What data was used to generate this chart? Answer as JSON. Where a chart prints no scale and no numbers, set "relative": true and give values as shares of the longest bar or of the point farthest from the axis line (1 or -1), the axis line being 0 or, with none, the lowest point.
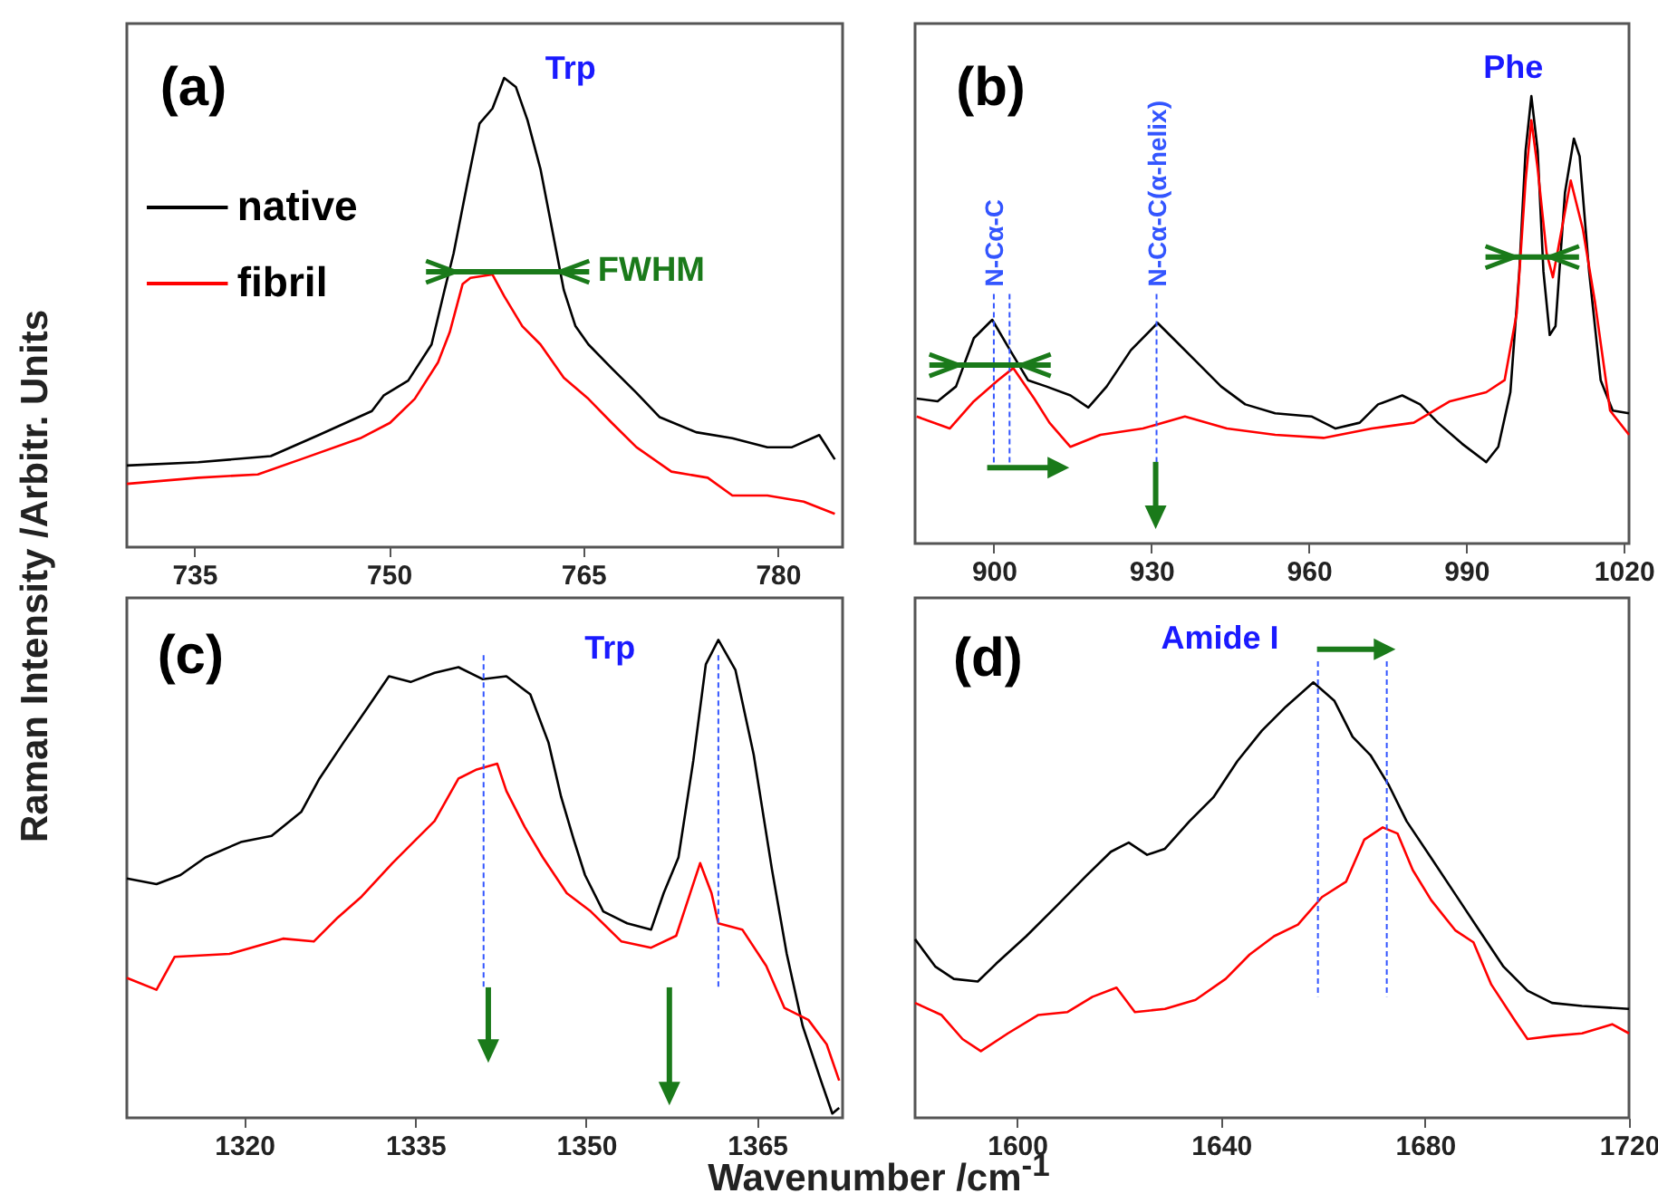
{
  "chart_data": [
    {
      "type": "line",
      "relative": true,
      "ylabel": "Raman Intensity /Arbitr. Units",
      "legend": "top left",
      "tick_labels": "x",
      "grid": false,
      "annotations": [
        "(a)",
        "Trp",
        "FWHM"
      ],
      "xlim": [
        729.8,
        785
      ],
      "xticks": [
        735,
        750,
        765,
        780
      ],
      "series": [
        {
          "name": "native",
          "color": "#000000",
          "x": [
            729.8,
            735.3,
            740.9,
            744.6,
            748.7,
            749.6,
            751.5,
            753.3,
            754.3,
            755.0,
            756.1,
            757.0,
            758.0,
            758.9,
            759.8,
            760.7,
            761.7,
            762.6,
            763.5,
            764.4,
            765.4,
            767.2,
            769.1,
            770.9,
            773.7,
            776.5,
            779.2,
            781.1,
            783.2,
            784.4
          ],
          "values": [
            0.174,
            0.181,
            0.194,
            0.239,
            0.29,
            0.323,
            0.355,
            0.432,
            0.548,
            0.626,
            0.781,
            0.903,
            0.935,
            1.0,
            0.981,
            0.91,
            0.806,
            0.677,
            0.548,
            0.471,
            0.432,
            0.381,
            0.329,
            0.277,
            0.245,
            0.232,
            0.213,
            0.213,
            0.239,
            0.187
          ]
        },
        {
          "name": "fibril",
          "color": "#ff0000",
          "x": [
            729.8,
            735.3,
            739.9,
            743.2,
            747.8,
            750.1,
            752.0,
            753.8,
            754.7,
            755.7,
            756.3,
            758.0,
            758.9,
            760.3,
            761.7,
            763.5,
            765.4,
            767.2,
            769.1,
            771.8,
            774.6,
            776.5,
            779.2,
            782.0,
            784.4
          ],
          "values": [
            0.135,
            0.148,
            0.155,
            0.187,
            0.232,
            0.265,
            0.316,
            0.394,
            0.458,
            0.561,
            0.574,
            0.581,
            0.535,
            0.471,
            0.432,
            0.361,
            0.316,
            0.265,
            0.213,
            0.161,
            0.148,
            0.11,
            0.11,
            0.097,
            0.071
          ]
        }
      ]
    },
    {
      "type": "line",
      "relative": true,
      "tick_labels": "x",
      "grid": false,
      "annotations": [
        "(b)",
        "Phe"
      ],
      "ref_lines": [
        {
          "axis": "x",
          "value": 900,
          "label": "N-Cα-C",
          "color": "#3355ff",
          "line_style": "dashed"
        },
        {
          "axis": "x",
          "value": 903,
          "color": "#3355ff",
          "line_style": "dashed"
        },
        {
          "axis": "x",
          "value": 931,
          "label": "N-Cα-C(α-helix)",
          "color": "#3355ff",
          "line_style": "dashed"
        }
      ],
      "xlim": [
        885,
        1021
      ],
      "xticks": [
        900,
        930,
        960,
        990,
        1020
      ],
      "series": [
        {
          "color": "#000000",
          "x": [
            885.3,
            889.3,
            892.8,
            896.2,
            899.7,
            903.1,
            906.5,
            910.0,
            914.6,
            918.0,
            921.5,
            926.1,
            931.2,
            934.1,
            938.7,
            943.3,
            947.9,
            953.6,
            960.5,
            965.1,
            969.7,
            973.2,
            977.8,
            981.2,
            984.6,
            989.2,
            993.8,
            996.1,
            998.4,
            1000.1,
            1001.3,
            1002.4,
            1003.6,
            1004.7,
            1005.9,
            1007.0,
            1008.8,
            1010.5,
            1011.6,
            1013.4,
            1015.6,
            1017.9,
            1021.0
          ],
          "values": [
            0.324,
            0.318,
            0.351,
            0.459,
            0.5,
            0.432,
            0.365,
            0.351,
            0.331,
            0.304,
            0.351,
            0.432,
            0.493,
            0.459,
            0.405,
            0.351,
            0.311,
            0.291,
            0.284,
            0.257,
            0.27,
            0.311,
            0.331,
            0.311,
            0.27,
            0.223,
            0.182,
            0.216,
            0.338,
            0.608,
            0.878,
            1.0,
            0.878,
            0.608,
            0.466,
            0.486,
            0.784,
            0.905,
            0.865,
            0.608,
            0.365,
            0.297,
            0.291
          ]
        },
        {
          "color": "#ff0000",
          "x": [
            885.3,
            891.6,
            896.2,
            900.8,
            903.7,
            907.7,
            910.6,
            914.6,
            920.3,
            928.4,
            936.4,
            944.4,
            953.6,
            962.8,
            972.0,
            980.0,
            986.9,
            993.8,
            997.3,
            999.6,
            1001.3,
            1002.4,
            1003.6,
            1005.3,
            1006.5,
            1008.2,
            1009.9,
            1012.2,
            1014.5,
            1017.4,
            1021.0
          ],
          "values": [
            0.284,
            0.257,
            0.318,
            0.365,
            0.392,
            0.324,
            0.27,
            0.216,
            0.243,
            0.257,
            0.284,
            0.257,
            0.243,
            0.236,
            0.257,
            0.27,
            0.318,
            0.338,
            0.365,
            0.514,
            0.811,
            0.946,
            0.838,
            0.649,
            0.595,
            0.703,
            0.811,
            0.703,
            0.541,
            0.297,
            0.243
          ]
        }
      ]
    },
    {
      "type": "line",
      "relative": true,
      "xlabel": "Wavenumber /cm$^{-1}$",
      "tick_labels": "x",
      "grid": false,
      "annotations": [
        "(c)",
        "Trp"
      ],
      "ref_lines": [
        {
          "axis": "x",
          "value": 1341,
          "color": "#3355ff",
          "line_style": "dashed"
        },
        {
          "axis": "x",
          "value": 1361.6,
          "color": "#3355ff",
          "line_style": "dashed"
        }
      ],
      "xlim": [
        1309.7,
        1372.5
      ],
      "xticks": [
        1320,
        1335,
        1350,
        1365
      ],
      "series": [
        {
          "color": "#000000",
          "x": [
            1309.7,
            1312.3,
            1314.4,
            1316.6,
            1319.7,
            1322.4,
            1325.0,
            1326.6,
            1328.7,
            1330.9,
            1332.7,
            1334.6,
            1336.7,
            1338.8,
            1340.9,
            1343.0,
            1345.1,
            1346.7,
            1347.8,
            1348.9,
            1349.9,
            1351.5,
            1353.6,
            1355.7,
            1356.8,
            1358.1,
            1359.4,
            1360.5,
            1361.6,
            1363.1,
            1364.7,
            1366.3,
            1367.6,
            1369.0,
            1370.6,
            1371.6,
            1372.2
          ],
          "values": [
            0.501,
            0.489,
            0.508,
            0.545,
            0.577,
            0.59,
            0.64,
            0.71,
            0.785,
            0.861,
            0.924,
            0.912,
            0.931,
            0.943,
            0.918,
            0.924,
            0.886,
            0.785,
            0.672,
            0.583,
            0.508,
            0.432,
            0.407,
            0.394,
            0.47,
            0.545,
            0.747,
            0.949,
            1.0,
            0.937,
            0.76,
            0.52,
            0.343,
            0.192,
            0.078,
            0.009,
            0.021
          ]
        },
        {
          "color": "#ff0000",
          "x": [
            1309.7,
            1312.3,
            1313.9,
            1318.7,
            1323.4,
            1326.1,
            1328.2,
            1330.3,
            1333.0,
            1335.1,
            1336.7,
            1338.8,
            1340.4,
            1342.2,
            1343.0,
            1344.6,
            1346.2,
            1348.3,
            1350.4,
            1353.1,
            1355.7,
            1357.9,
            1360.0,
            1361.0,
            1361.6,
            1363.7,
            1365.8,
            1367.4,
            1369.5,
            1371.1,
            1372.2
          ],
          "values": [
            0.293,
            0.268,
            0.337,
            0.343,
            0.375,
            0.369,
            0.419,
            0.463,
            0.533,
            0.583,
            0.621,
            0.71,
            0.729,
            0.741,
            0.684,
            0.609,
            0.545,
            0.47,
            0.432,
            0.369,
            0.356,
            0.381,
            0.533,
            0.47,
            0.407,
            0.394,
            0.318,
            0.23,
            0.205,
            0.154,
            0.078
          ]
        }
      ]
    },
    {
      "type": "line",
      "relative": true,
      "tick_labels": "x",
      "grid": false,
      "annotations": [
        "(d)",
        "Amide I"
      ],
      "ref_lines": [
        {
          "axis": "x",
          "value": 1659,
          "color": "#3355ff",
          "line_style": "dashed"
        },
        {
          "axis": "x",
          "value": 1672.5,
          "color": "#3355ff",
          "line_style": "dashed"
        }
      ],
      "xlim": [
        1580,
        1720
      ],
      "xticks": [
        1600,
        1640,
        1680,
        1720
      ],
      "series": [
        {
          "color": "#000000",
          "x": [
            1580.0,
            1584.0,
            1587.6,
            1592.3,
            1595.9,
            1601.8,
            1607.7,
            1613.6,
            1618.4,
            1621.9,
            1625.5,
            1629.0,
            1633.8,
            1638.5,
            1643.2,
            1648.0,
            1652.7,
            1658.1,
            1662.2,
            1665.8,
            1669.3,
            1672.9,
            1676.4,
            1681.2,
            1685.9,
            1690.6,
            1695.4,
            1700.1,
            1704.9,
            1710.8,
            1720.0
          ],
          "values": [
            0.41,
            0.347,
            0.319,
            0.313,
            0.354,
            0.417,
            0.486,
            0.556,
            0.611,
            0.632,
            0.604,
            0.618,
            0.681,
            0.736,
            0.819,
            0.889,
            0.944,
            1.0,
            0.958,
            0.875,
            0.833,
            0.764,
            0.681,
            0.597,
            0.514,
            0.431,
            0.347,
            0.292,
            0.264,
            0.257,
            0.25
          ]
        },
        {
          "color": "#ff0000",
          "x": [
            1580.0,
            1585.2,
            1589.3,
            1592.9,
            1598.2,
            1604.1,
            1609.9,
            1614.8,
            1619.5,
            1623.1,
            1629.0,
            1635.0,
            1640.9,
            1645.6,
            1650.4,
            1655.1,
            1659.8,
            1664.5,
            1668.1,
            1671.7,
            1674.6,
            1677.6,
            1681.2,
            1685.9,
            1689.5,
            1693.0,
            1697.7,
            1700.1,
            1704.9,
            1710.8,
            1716.7,
            1720.0
          ],
          "values": [
            0.264,
            0.236,
            0.181,
            0.153,
            0.194,
            0.236,
            0.243,
            0.278,
            0.299,
            0.243,
            0.25,
            0.271,
            0.319,
            0.375,
            0.417,
            0.444,
            0.507,
            0.542,
            0.639,
            0.667,
            0.653,
            0.569,
            0.5,
            0.431,
            0.403,
            0.306,
            0.222,
            0.181,
            0.188,
            0.194,
            0.215,
            0.194
          ]
        }
      ]
    }
  ]
}
